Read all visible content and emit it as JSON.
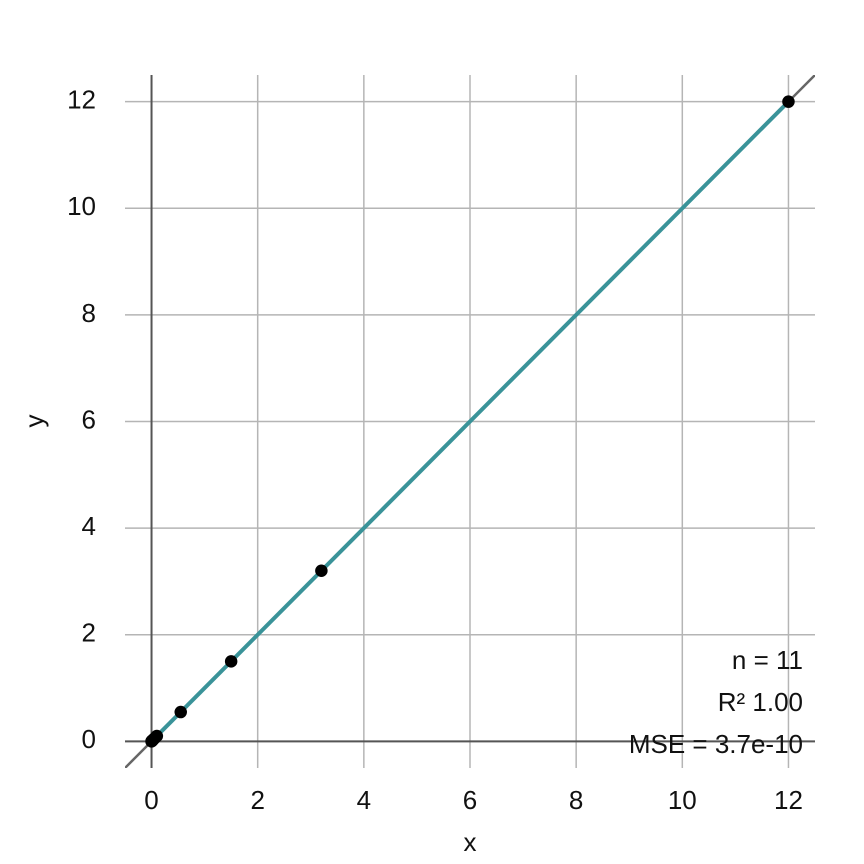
{
  "chart_data": {
    "type": "scatter",
    "x": [
      0,
      0.005,
      0.01,
      0.02,
      0.04,
      0.07,
      0.1,
      0.55,
      1.5,
      3.2,
      12
    ],
    "y": [
      0,
      0.005,
      0.01,
      0.02,
      0.04,
      0.07,
      0.1,
      0.55,
      1.5,
      3.2,
      12
    ],
    "point_color": "#000000",
    "fit_line": {
      "x": [
        0,
        12
      ],
      "y": [
        0,
        12
      ],
      "color": "#3a9399"
    },
    "identity_line": true,
    "xlabel": "x",
    "ylabel": "y",
    "xlim": [
      -0.5,
      12.5
    ],
    "ylim": [
      -0.5,
      12.5
    ],
    "xticks": [
      0,
      2,
      4,
      6,
      8,
      10,
      12
    ],
    "yticks": [
      0,
      2,
      4,
      6,
      8,
      10,
      12
    ],
    "grid": true,
    "annotations": [
      "n = 11",
      "R² 1.00",
      "MSE = 3.7e-10"
    ]
  }
}
